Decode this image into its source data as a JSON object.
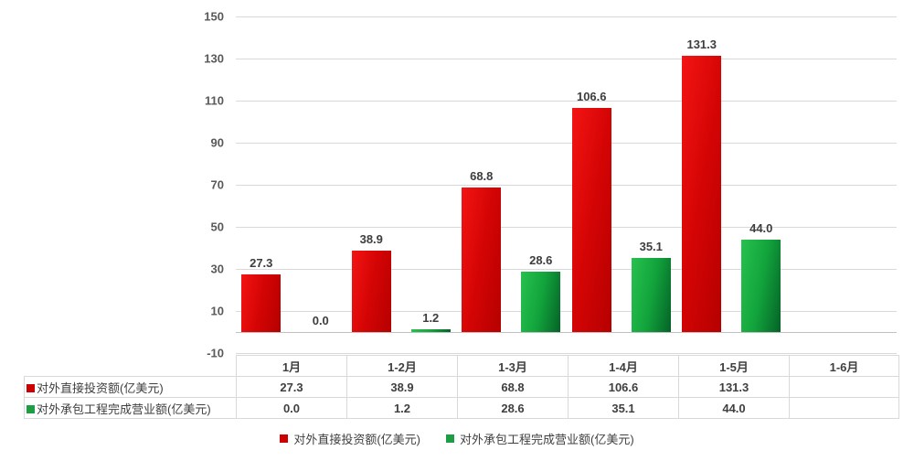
{
  "chart_data": {
    "type": "bar",
    "title": "",
    "xlabel": "",
    "ylabel": "",
    "categories": [
      "1月",
      "1-2月",
      "1-3月",
      "1-4月",
      "1-5月",
      "1-6月"
    ],
    "series": [
      {
        "name": "对外直接投资额(亿美元)",
        "color": "#cc0000",
        "gradient": [
          "#f41414",
          "#d40404",
          "#b50000"
        ],
        "values": [
          27.3,
          38.9,
          68.8,
          106.6,
          131.3,
          null
        ],
        "labels": [
          "27.3",
          "38.9",
          "68.8",
          "106.6",
          "131.3",
          ""
        ]
      },
      {
        "name": "对外承包工程完成营业额(亿美元)",
        "color": "#1e9e44",
        "gradient": [
          "#27c14e",
          "#12a43c",
          "#056227"
        ],
        "values": [
          0.0,
          1.2,
          28.6,
          35.1,
          44.0,
          null
        ],
        "labels": [
          "0.0",
          "1.2",
          "28.6",
          "35.1",
          "44.0",
          ""
        ]
      }
    ],
    "ylim": [
      -10,
      150
    ],
    "yticks": [
      150,
      130,
      110,
      90,
      70,
      50,
      30,
      10,
      -10
    ],
    "grid": true,
    "axis_line_value": 0,
    "data_labels": true,
    "data_table": true,
    "legend_position": "bottom",
    "colors": {
      "gridline": "#d9d9d9",
      "axis_line": "#c0c0c0",
      "tick_label": "#595959",
      "data_label": "#3d3d3d",
      "table_border": "#d9d9d9",
      "table_text": "#3f3f3f",
      "legend_text": "#404040",
      "background": "#ffffff"
    }
  }
}
